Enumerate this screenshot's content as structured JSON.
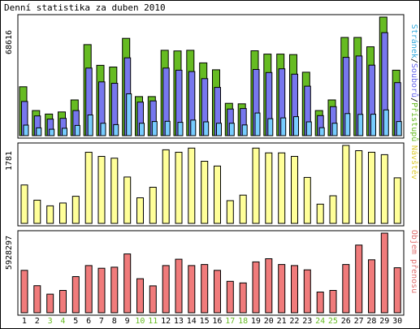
{
  "title": "Denní statistika za duben 2010",
  "colors": {
    "hits": "#66bb22",
    "files": "#7777ee",
    "pages": "#77ccff",
    "visits": "#ffff99",
    "kbytes": "#f07b7b",
    "weekend": "#66bb22",
    "frame": "#000000"
  },
  "legend": {
    "top": [
      {
        "text": "Stránek",
        "color": "#33aadd"
      },
      {
        "text": "/",
        "color": "#000000"
      },
      {
        "text": "Souborů",
        "color": "#6666ee"
      },
      {
        "text": "/",
        "color": "#000000"
      },
      {
        "text": "Přístupů",
        "color": "#66bb22"
      }
    ],
    "middle": "Návštěv",
    "bottom": "Objem přenosu"
  },
  "axis_max": {
    "top": "68616",
    "middle": "1781",
    "bottom": "5928297"
  },
  "chart_data": {
    "type": "bar",
    "title": "Denní statistika za duben 2010",
    "categories": [
      "1",
      "2",
      "3",
      "4",
      "5",
      "6",
      "7",
      "8",
      "9",
      "10",
      "11",
      "12",
      "13",
      "14",
      "15",
      "16",
      "17",
      "18",
      "19",
      "20",
      "21",
      "22",
      "23",
      "24",
      "25",
      "26",
      "27",
      "28",
      "29",
      "30"
    ],
    "weekend_days": [
      "3",
      "4",
      "10",
      "11",
      "17",
      "18",
      "24",
      "25"
    ],
    "panels": [
      {
        "name": "top",
        "ylim": [
          0,
          68616
        ],
        "series": [
          {
            "name": "Přístupů",
            "values": [
              28300,
              14500,
              12500,
              13700,
              20700,
              52700,
              40700,
              39700,
              56300,
              22600,
              22600,
              49400,
              49000,
              49400,
              42100,
              38100,
              18700,
              18400,
              49100,
              47200,
              47200,
              46900,
              36700,
              14500,
              20700,
              56800,
              56800,
              51400,
              69000,
              37900
            ]
          },
          {
            "name": "Souborů",
            "values": [
              19800,
              11400,
              9600,
              10000,
              14500,
              39100,
              31100,
              30300,
              45000,
              19400,
              20100,
              39100,
              37900,
              37100,
              33000,
              27900,
              15400,
              15700,
              38300,
              36500,
              38700,
              35600,
              28600,
              11600,
              16800,
              45300,
              46100,
              40800,
              59600,
              30700
            ]
          },
          {
            "name": "Stránek",
            "values": [
              6100,
              4500,
              3700,
              4300,
              5900,
              12000,
              7200,
              6400,
              24200,
              7200,
              8200,
              8300,
              7700,
              9000,
              8000,
              7200,
              7200,
              6200,
              13100,
              9800,
              10300,
              11000,
              8000,
              4600,
              7200,
              12800,
              12300,
              12400,
              14900,
              8200
            ]
          }
        ]
      },
      {
        "name": "middle",
        "ylim": [
          0,
          1781
        ],
        "series": [
          {
            "name": "Návštěv",
            "values": [
              877,
              530,
              400,
              465,
              620,
              1625,
              1530,
              1490,
              1060,
              585,
              825,
              1680,
              1625,
              1720,
              1420,
              1310,
              520,
              645,
              1720,
              1610,
              1610,
              1530,
              1050,
              440,
              630,
              1781,
              1660,
              1625,
              1570,
              1040
            ]
          }
        ]
      },
      {
        "name": "bottom",
        "ylim": [
          0,
          5928297
        ],
        "series": [
          {
            "name": "Objem přenosu",
            "values": [
              3158000,
              2016000,
              1385000,
              1661000,
              2693000,
              3512000,
              3315000,
              3394000,
              4382000,
              2536000,
              2004000,
              3512000,
              3985000,
              3512000,
              3591000,
              3158000,
              2339000,
              2221000,
              3788000,
              4024000,
              3591000,
              3512000,
              3197000,
              1543000,
              1661000,
              3591000,
              5037000,
              3946000,
              6086000,
              3354000
            ]
          }
        ]
      }
    ]
  }
}
